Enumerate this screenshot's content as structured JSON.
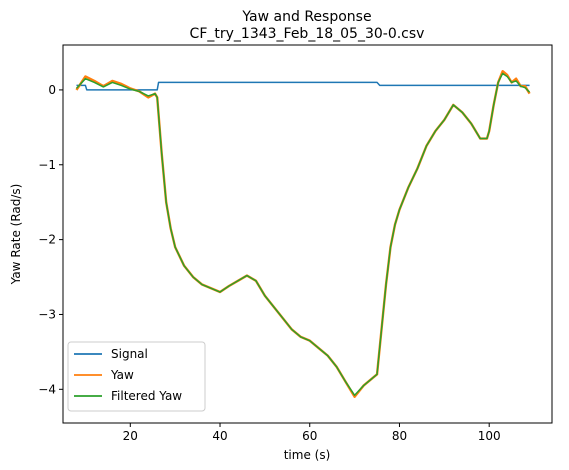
{
  "chart_data": {
    "type": "line",
    "title": "Yaw and Response",
    "subtitle": "CF_try_1343_Feb_18_05_30-0.csv",
    "xlabel": "time (s)",
    "ylabel": "Yaw Rate (Rad/s)",
    "xlim": [
      5,
      114
    ],
    "ylim": [
      -4.45,
      0.6
    ],
    "xticks": [
      20,
      40,
      60,
      80,
      100
    ],
    "yticks": [
      0,
      -1,
      -2,
      -3,
      -4
    ],
    "grid": false,
    "legend_position": "lower-left",
    "series": [
      {
        "name": "Signal",
        "color": "#1f77b4",
        "x": [
          8.0,
          10.0,
          10.3,
          26.0,
          26.3,
          75.0,
          75.6,
          99.6,
          100.1,
          109.0
        ],
        "y": [
          0.06,
          0.06,
          0.0,
          0.0,
          0.1,
          0.1,
          0.06,
          0.06,
          0.06,
          0.06
        ]
      },
      {
        "name": "Yaw",
        "color": "#ff7f0e",
        "x": [
          8,
          10,
          12,
          14,
          16,
          18,
          20,
          22,
          24,
          25.5,
          26,
          27,
          28,
          29,
          30,
          32,
          34,
          36,
          38,
          40,
          42,
          44,
          46,
          48,
          50,
          52,
          54,
          56,
          58,
          60,
          62,
          64,
          66,
          68,
          70,
          72,
          74,
          75,
          76,
          77,
          78,
          79,
          80,
          82,
          84,
          86,
          88,
          90,
          92,
          94,
          96,
          98,
          99.5,
          100,
          101,
          102,
          103,
          104,
          105,
          106,
          107,
          108,
          109
        ],
        "y": [
          0.0,
          0.18,
          0.12,
          0.05,
          0.12,
          0.08,
          0.02,
          -0.02,
          -0.1,
          -0.05,
          -0.1,
          -0.85,
          -1.5,
          -1.85,
          -2.1,
          -2.35,
          -2.5,
          -2.6,
          -2.65,
          -2.7,
          -2.62,
          -2.55,
          -2.48,
          -2.55,
          -2.75,
          -2.9,
          -3.05,
          -3.2,
          -3.3,
          -3.35,
          -3.45,
          -3.55,
          -3.7,
          -3.9,
          -4.1,
          -3.95,
          -3.85,
          -3.8,
          -3.2,
          -2.6,
          -2.1,
          -1.8,
          -1.6,
          -1.3,
          -1.05,
          -0.75,
          -0.55,
          -0.4,
          -0.2,
          -0.3,
          -0.45,
          -0.65,
          -0.65,
          -0.55,
          -0.2,
          0.1,
          0.25,
          0.2,
          0.1,
          0.15,
          0.05,
          0.05,
          -0.05
        ]
      },
      {
        "name": "Filtered Yaw",
        "color": "#2ca02c",
        "x": [
          8,
          10,
          12,
          14,
          16,
          18,
          20,
          22,
          24,
          25.5,
          26,
          27,
          28,
          29,
          30,
          32,
          34,
          36,
          38,
          40,
          42,
          44,
          46,
          48,
          50,
          52,
          54,
          56,
          58,
          60,
          62,
          64,
          66,
          68,
          70,
          72,
          74,
          75,
          76,
          77,
          78,
          79,
          80,
          82,
          84,
          86,
          88,
          90,
          92,
          94,
          96,
          98,
          99.5,
          100,
          101,
          102,
          103,
          104,
          105,
          106,
          107,
          108,
          109
        ],
        "y": [
          0.02,
          0.15,
          0.1,
          0.04,
          0.1,
          0.06,
          0.01,
          -0.02,
          -0.08,
          -0.05,
          -0.1,
          -0.85,
          -1.5,
          -1.85,
          -2.1,
          -2.35,
          -2.5,
          -2.6,
          -2.65,
          -2.7,
          -2.62,
          -2.55,
          -2.48,
          -2.55,
          -2.75,
          -2.9,
          -3.05,
          -3.2,
          -3.3,
          -3.35,
          -3.45,
          -3.55,
          -3.7,
          -3.9,
          -4.08,
          -3.95,
          -3.85,
          -3.8,
          -3.2,
          -2.6,
          -2.1,
          -1.8,
          -1.6,
          -1.3,
          -1.05,
          -0.75,
          -0.55,
          -0.4,
          -0.2,
          -0.3,
          -0.45,
          -0.65,
          -0.65,
          -0.55,
          -0.2,
          0.1,
          0.22,
          0.18,
          0.1,
          0.12,
          0.05,
          0.03,
          -0.03
        ]
      }
    ]
  }
}
